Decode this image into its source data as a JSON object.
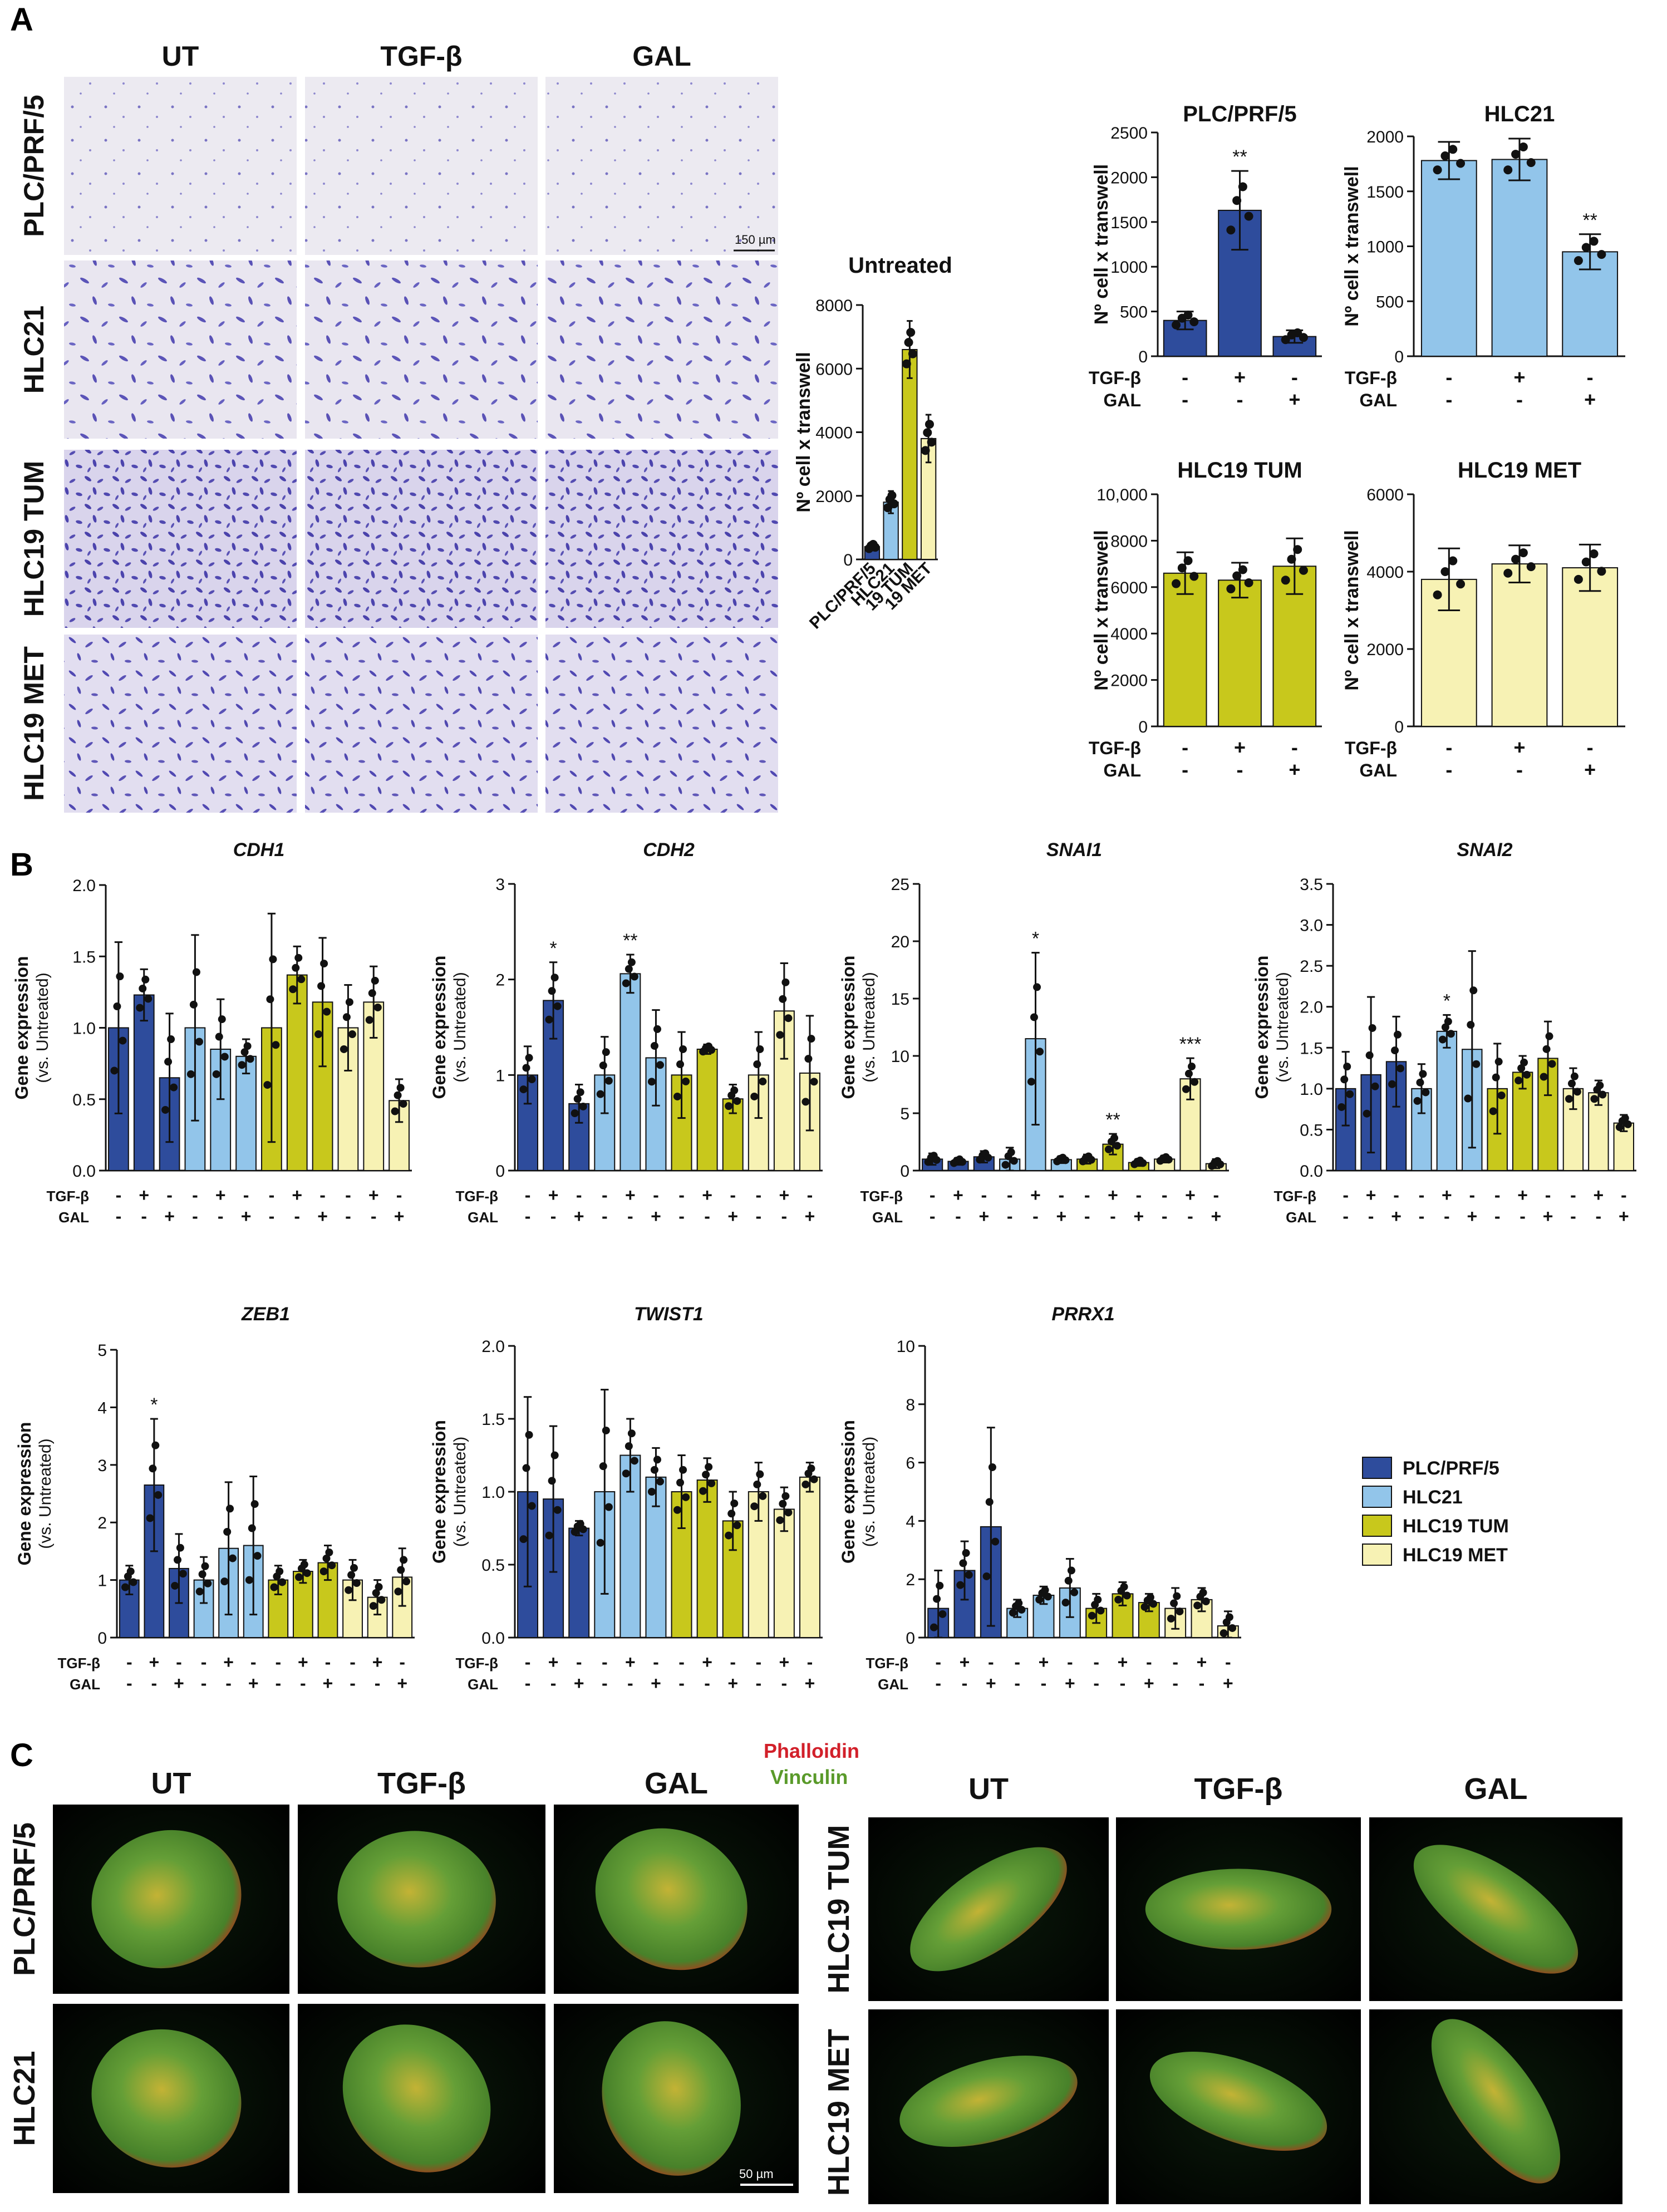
{
  "panels": {
    "a": "A",
    "b": "B",
    "c": "C"
  },
  "colors": {
    "PLC/PRF/5": "#2e4c9c",
    "HLC21": "#92c5ea",
    "HLC19 TUM": "#c8c81c",
    "HLC19 MET": "#f7f2b4"
  },
  "treatment": {
    "tgf_label": "TGF-β",
    "gal_label": "GAL",
    "tgf_signs": [
      "-",
      "+",
      "-"
    ],
    "gal_signs": [
      "-",
      "-",
      "+"
    ],
    "plus": "+",
    "minus": "-"
  },
  "micro_a": {
    "cols": [
      "UT",
      "TGF-β",
      "GAL"
    ],
    "rows": [
      "PLC/PRF/5",
      "HLC21",
      "HLC19 TUM",
      "HLC19 MET"
    ],
    "scale": "150 µm"
  },
  "micro_c": {
    "left_cols": [
      "UT",
      "TGF-β",
      "GAL"
    ],
    "left_rows": [
      "PLC/PRF/5",
      "HLC21"
    ],
    "right_cols": [
      "UT",
      "TGF-β",
      "GAL"
    ],
    "right_rows": [
      "HLC19 TUM",
      "HLC19 MET"
    ],
    "stain1": "Phalloidin",
    "stain2": "Vinculin",
    "stain1_color": "#d2202a",
    "stain2_color": "#5a9a2a",
    "scale": "50 µm"
  },
  "legend": [
    "PLC/PRF/5",
    "HLC21",
    "HLC19 TUM",
    "HLC19 MET"
  ],
  "chart_data": [
    {
      "id": "untreated",
      "type": "bar",
      "title": "Untreated",
      "ylabel": "Nº cell x transwell",
      "ylim": [
        0,
        8000
      ],
      "yticks": [
        0,
        2000,
        4000,
        6000,
        8000
      ],
      "categories": [
        "PLC/PRF/5",
        "HLC21",
        "19 TUM",
        "19 MET"
      ],
      "category_lines": [
        "PLC/PRF/5",
        "HLC21",
        "HLC19 TUM",
        "HLC19 MET"
      ],
      "values": [
        400,
        1800,
        6600,
        3800
      ],
      "errors": [
        120,
        350,
        900,
        750
      ],
      "sig": [
        "",
        "",
        "",
        ""
      ]
    },
    {
      "id": "a_plc",
      "type": "bar",
      "title": "PLC/PRF/5",
      "ylabel": "Nº cell x transwell",
      "ylim": [
        0,
        2500
      ],
      "yticks": [
        0,
        500,
        1000,
        1500,
        2000,
        2500
      ],
      "line": "PLC/PRF/5",
      "values": [
        400,
        1630,
        220
      ],
      "errors": [
        100,
        440,
        70
      ],
      "sig": [
        "",
        "**",
        ""
      ]
    },
    {
      "id": "a_hlc21",
      "type": "bar",
      "title": "HLC21",
      "ylabel": "Nº cell x transwell",
      "ylim": [
        0,
        2000
      ],
      "yticks": [
        0,
        500,
        1000,
        1500,
        2000
      ],
      "line": "HLC21",
      "values": [
        1780,
        1790,
        950
      ],
      "errors": [
        170,
        190,
        160
      ],
      "sig": [
        "",
        "",
        "**"
      ]
    },
    {
      "id": "a_tum",
      "type": "bar",
      "title": "HLC19 TUM",
      "ylabel": "Nº cell x transwell",
      "ylim": [
        0,
        10000
      ],
      "yticks": [
        0,
        2000,
        4000,
        6000,
        8000,
        10000
      ],
      "ytick_labels": [
        "0",
        "2000",
        "4000",
        "6000",
        "8000",
        "10,000"
      ],
      "line": "HLC19 TUM",
      "values": [
        6600,
        6300,
        6900
      ],
      "errors": [
        900,
        750,
        1200
      ],
      "sig": [
        "",
        "",
        ""
      ]
    },
    {
      "id": "a_met",
      "type": "bar",
      "title": "HLC19 MET",
      "ylabel": "Nº cell x transwell",
      "ylim": [
        0,
        6000
      ],
      "yticks": [
        0,
        2000,
        4000,
        6000
      ],
      "line": "HLC19 MET",
      "values": [
        3800,
        4200,
        4100
      ],
      "errors": [
        800,
        480,
        600
      ],
      "sig": [
        "",
        "",
        ""
      ]
    },
    {
      "id": "cdh1",
      "type": "bar",
      "title": "CDH1",
      "ylabel": "Gene expression",
      "ylabel2": "(vs. Untreated)",
      "ylim": [
        0,
        2.0
      ],
      "yticks": [
        0,
        0.5,
        1.0,
        1.5,
        2.0
      ],
      "ytick_labels": [
        "0.0",
        "0.5",
        "1.0",
        "1.5",
        "2.0"
      ],
      "values": [
        1.0,
        1.23,
        0.65,
        1.0,
        0.85,
        0.8,
        1.0,
        1.37,
        1.18,
        1.0,
        1.18,
        0.49
      ],
      "errors": [
        0.6,
        0.18,
        0.45,
        0.65,
        0.35,
        0.12,
        0.8,
        0.2,
        0.45,
        0.3,
        0.25,
        0.15
      ],
      "sig": [
        "",
        "",
        "",
        "",
        "",
        "",
        "",
        "",
        "",
        "",
        "",
        ""
      ]
    },
    {
      "id": "cdh2",
      "type": "bar",
      "title": "CDH2",
      "ylabel": "Gene expression",
      "ylabel2": "(vs. Untreated)",
      "ylim": [
        0,
        3
      ],
      "yticks": [
        0,
        1,
        2,
        3
      ],
      "values": [
        1.0,
        1.78,
        0.7,
        1.0,
        2.06,
        1.18,
        1.0,
        1.27,
        0.75,
        1.0,
        1.67,
        1.02
      ],
      "errors": [
        0.3,
        0.4,
        0.2,
        0.4,
        0.2,
        0.5,
        0.45,
        0.05,
        0.15,
        0.45,
        0.5,
        0.6
      ],
      "sig": [
        "",
        "*",
        "",
        "",
        "**",
        "",
        "",
        "",
        "",
        "",
        "",
        ""
      ]
    },
    {
      "id": "snai1",
      "type": "bar",
      "title": "SNAI1",
      "ylabel": "Gene expression",
      "ylabel2": "(vs. Untreated)",
      "ylim": [
        0,
        25
      ],
      "yticks": [
        0,
        5,
        10,
        15,
        20,
        25
      ],
      "values": [
        1.0,
        0.8,
        1.2,
        1.0,
        11.5,
        0.95,
        1.0,
        2.3,
        0.7,
        1.0,
        8.0,
        0.6
      ],
      "errors": [
        0.5,
        0.3,
        0.5,
        1.0,
        7.5,
        0.3,
        0.4,
        0.9,
        0.3,
        0.3,
        1.8,
        0.4
      ],
      "sig": [
        "",
        "",
        "",
        "",
        "*",
        "",
        "",
        "**",
        "",
        "",
        "***",
        ""
      ]
    },
    {
      "id": "snai2",
      "type": "bar",
      "title": "SNAI2",
      "ylabel": "Gene expression",
      "ylabel2": "(vs. Untreated)",
      "ylim": [
        0,
        3.5
      ],
      "yticks": [
        0,
        0.5,
        1.0,
        1.5,
        2.0,
        2.5,
        3.0,
        3.5
      ],
      "ytick_labels": [
        "0.0",
        "0.5",
        "1.0",
        "1.5",
        "2.0",
        "2.5",
        "3.0",
        "3.5"
      ],
      "values": [
        1.0,
        1.17,
        1.33,
        1.0,
        1.7,
        1.48,
        1.0,
        1.2,
        1.37,
        1.0,
        0.95,
        0.58
      ],
      "errors": [
        0.45,
        0.95,
        0.55,
        0.3,
        0.2,
        1.2,
        0.55,
        0.2,
        0.45,
        0.25,
        0.15,
        0.1
      ],
      "sig": [
        "",
        "",
        "",
        "",
        "*",
        "",
        "",
        "",
        "",
        "",
        "",
        ""
      ]
    },
    {
      "id": "zeb1",
      "type": "bar",
      "title": "ZEB1",
      "ylabel": "Gene expression",
      "ylabel2": "(vs. Untreated)",
      "ylim": [
        0,
        5
      ],
      "yticks": [
        0,
        1,
        2,
        3,
        4,
        5
      ],
      "values": [
        1.0,
        2.65,
        1.2,
        1.0,
        1.55,
        1.6,
        1.0,
        1.15,
        1.3,
        1.0,
        0.7,
        1.05
      ],
      "errors": [
        0.25,
        1.15,
        0.6,
        0.4,
        1.15,
        1.2,
        0.25,
        0.2,
        0.3,
        0.35,
        0.3,
        0.5
      ],
      "sig": [
        "",
        "*",
        "",
        "",
        "",
        "",
        "",
        "",
        "",
        "",
        "",
        ""
      ]
    },
    {
      "id": "twist1",
      "type": "bar",
      "title": "TWIST1",
      "ylabel": "Gene expression",
      "ylabel2": "(vs. Untreated)",
      "ylim": [
        0,
        2.0
      ],
      "yticks": [
        0,
        0.5,
        1.0,
        1.5,
        2.0
      ],
      "ytick_labels": [
        "0.0",
        "0.5",
        "1.0",
        "1.5",
        "2.0"
      ],
      "values": [
        1.0,
        0.95,
        0.75,
        1.0,
        1.25,
        1.1,
        1.0,
        1.08,
        0.8,
        1.0,
        0.88,
        1.1
      ],
      "errors": [
        0.65,
        0.5,
        0.05,
        0.7,
        0.25,
        0.2,
        0.25,
        0.15,
        0.2,
        0.2,
        0.15,
        0.1
      ],
      "sig": [
        "",
        "",
        "",
        "",
        "",
        "",
        "",
        "",
        "",
        "",
        "",
        ""
      ]
    },
    {
      "id": "prrx1",
      "type": "bar",
      "title": "PRRX1",
      "ylabel": "Gene expression",
      "ylabel2": "(vs. Untreated)",
      "ylim": [
        0,
        10
      ],
      "yticks": [
        0,
        2,
        4,
        6,
        8,
        10
      ],
      "values": [
        1.0,
        2.3,
        3.8,
        1.0,
        1.45,
        1.7,
        1.0,
        1.5,
        1.2,
        1.0,
        1.3,
        0.4
      ],
      "errors": [
        1.3,
        1.0,
        3.4,
        0.3,
        0.3,
        1.0,
        0.5,
        0.4,
        0.3,
        0.7,
        0.4,
        0.5
      ],
      "sig": [
        "",
        "",
        "",
        "",
        "",
        "",
        "",
        "",
        "",
        "",
        "",
        ""
      ]
    }
  ]
}
